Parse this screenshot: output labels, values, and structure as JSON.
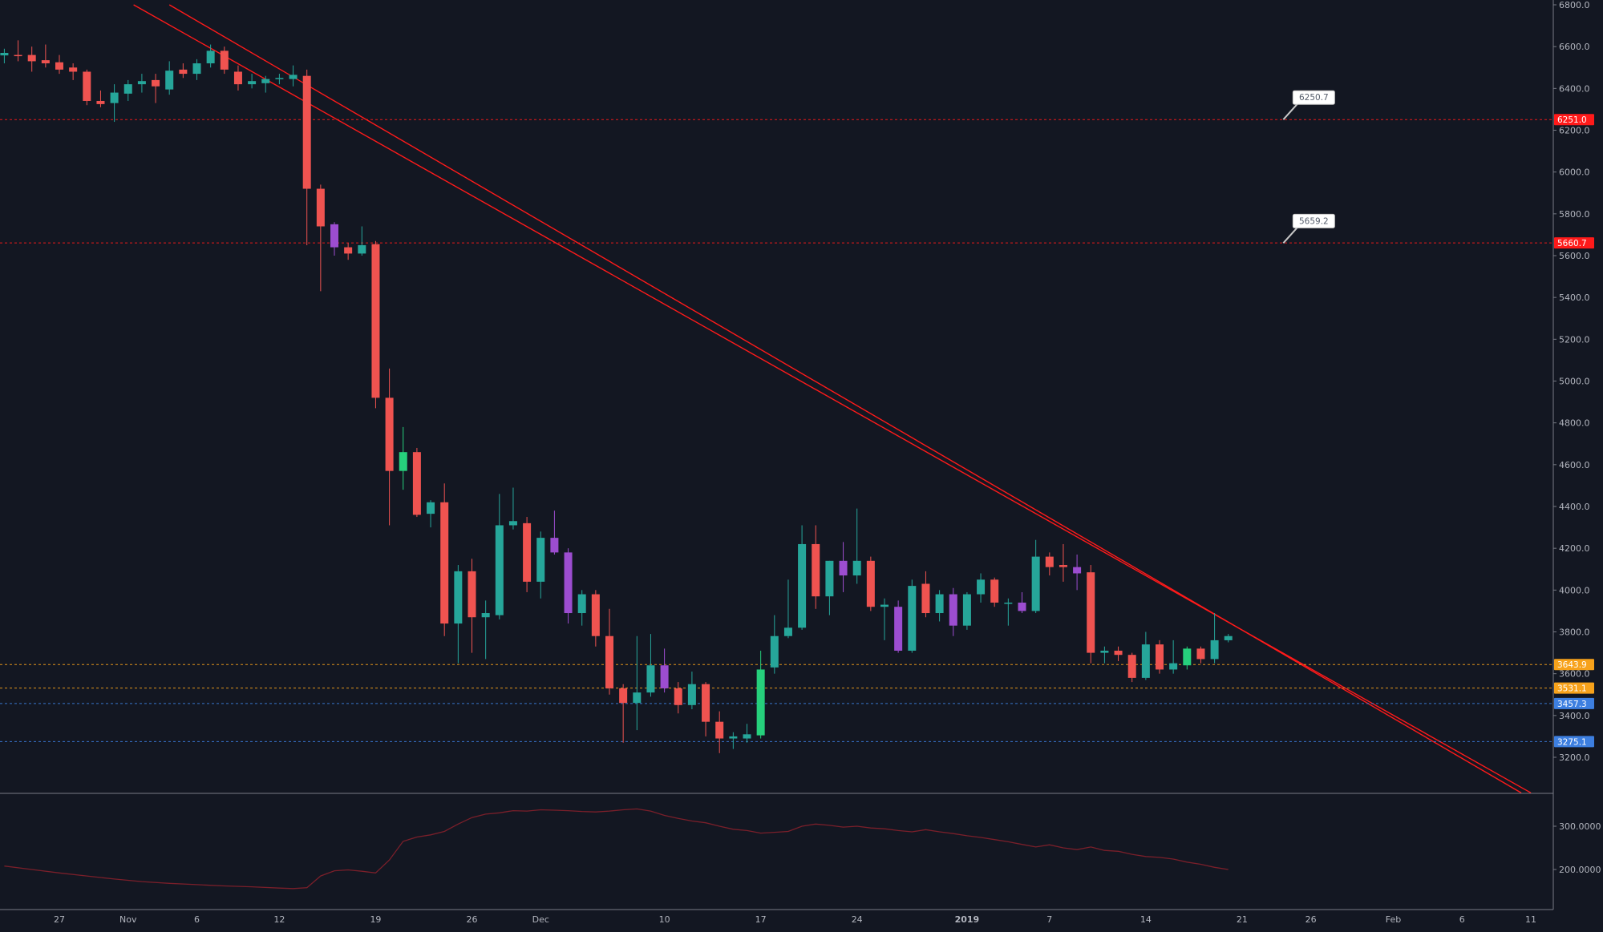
{
  "colors": {
    "background": "#131722",
    "up": "#26a69a",
    "down": "#ef5350",
    "up_bright": "#26d07c",
    "purple": "#9c4dd0",
    "trendline": "#ff1a1a",
    "axis_text": "#b2b5be",
    "grid_border": "#787b86",
    "red_label": "#ff1a1a",
    "orange_label": "#f7a21b",
    "blue_label": "#3d7fe0",
    "osc": "#7a1f2a"
  },
  "chart_data": [
    {
      "type": "candlestick",
      "title": "",
      "ylim": [
        3030,
        6800
      ],
      "y_ticks": [
        "6800.0",
        "6600.0",
        "6400.0",
        "6200.0",
        "6000.0",
        "5800.0",
        "5600.0",
        "5400.0",
        "5200.0",
        "5000.0",
        "4800.0",
        "4600.0",
        "4400.0",
        "4200.0",
        "4000.0",
        "3800.0",
        "3600.0",
        "3400.0",
        "3200.0"
      ],
      "x_ticks": [
        {
          "label": "27",
          "day": 0
        },
        {
          "label": "Nov",
          "day": 5
        },
        {
          "label": "6",
          "day": 10
        },
        {
          "label": "12",
          "day": 16
        },
        {
          "label": "19",
          "day": 23
        },
        {
          "label": "26",
          "day": 30
        },
        {
          "label": "Dec",
          "day": 35
        },
        {
          "label": "10",
          "day": 44
        },
        {
          "label": "17",
          "day": 51
        },
        {
          "label": "24",
          "day": 58
        },
        {
          "label": "2019",
          "day": 66
        },
        {
          "label": "7",
          "day": 72
        },
        {
          "label": "14",
          "day": 79
        },
        {
          "label": "21",
          "day": 86
        },
        {
          "label": "26",
          "day": 91
        },
        {
          "label": "Feb",
          "day": 97
        },
        {
          "label": "6",
          "day": 102
        },
        {
          "label": "11",
          "day": 107
        }
      ],
      "candles": [
        {
          "d": -4,
          "o": 6558,
          "h": 6590,
          "l": 6520,
          "c": 6570
        },
        {
          "d": -3,
          "o": 6560,
          "h": 6630,
          "l": 6530,
          "c": 6555
        },
        {
          "d": -2,
          "o": 6560,
          "h": 6600,
          "l": 6480,
          "c": 6530
        },
        {
          "d": -1,
          "o": 6535,
          "h": 6610,
          "l": 6500,
          "c": 6520
        },
        {
          "d": 0,
          "o": 6525,
          "h": 6560,
          "l": 6470,
          "c": 6490
        },
        {
          "d": 1,
          "o": 6500,
          "h": 6520,
          "l": 6440,
          "c": 6480
        },
        {
          "d": 2,
          "o": 6480,
          "h": 6490,
          "l": 6320,
          "c": 6340
        },
        {
          "d": 3,
          "o": 6340,
          "h": 6390,
          "l": 6310,
          "c": 6325
        },
        {
          "d": 4,
          "o": 6330,
          "h": 6420,
          "l": 6240,
          "c": 6380
        },
        {
          "d": 5,
          "o": 6375,
          "h": 6440,
          "l": 6340,
          "c": 6420
        },
        {
          "d": 6,
          "o": 6420,
          "h": 6470,
          "l": 6380,
          "c": 6435
        },
        {
          "d": 7,
          "o": 6440,
          "h": 6470,
          "l": 6330,
          "c": 6410
        },
        {
          "d": 8,
          "o": 6395,
          "h": 6530,
          "l": 6370,
          "c": 6485
        },
        {
          "d": 9,
          "o": 6490,
          "h": 6520,
          "l": 6450,
          "c": 6470
        },
        {
          "d": 10,
          "o": 6470,
          "h": 6540,
          "l": 6440,
          "c": 6520
        },
        {
          "d": 11,
          "o": 6520,
          "h": 6610,
          "l": 6500,
          "c": 6580
        },
        {
          "d": 12,
          "o": 6580,
          "h": 6600,
          "l": 6470,
          "c": 6490
        },
        {
          "d": 13,
          "o": 6480,
          "h": 6510,
          "l": 6390,
          "c": 6420
        },
        {
          "d": 14,
          "o": 6420,
          "h": 6470,
          "l": 6400,
          "c": 6435
        },
        {
          "d": 15,
          "o": 6425,
          "h": 6460,
          "l": 6380,
          "c": 6445
        },
        {
          "d": 16,
          "o": 6448,
          "h": 6470,
          "l": 6420,
          "c": 6450
        },
        {
          "d": 17,
          "o": 6445,
          "h": 6510,
          "l": 6410,
          "c": 6465
        },
        {
          "d": 18,
          "o": 6460,
          "h": 6490,
          "l": 5650,
          "c": 5920
        },
        {
          "d": 19,
          "o": 5920,
          "h": 5940,
          "l": 5430,
          "c": 5740
        },
        {
          "d": 20,
          "o": 5750,
          "h": 5760,
          "l": 5600,
          "c": 5640,
          "purple": true
        },
        {
          "d": 21,
          "o": 5640,
          "h": 5660,
          "l": 5580,
          "c": 5610
        },
        {
          "d": 22,
          "o": 5610,
          "h": 5740,
          "l": 5600,
          "c": 5650
        },
        {
          "d": 23,
          "o": 5655,
          "h": 5670,
          "l": 4870,
          "c": 4920
        },
        {
          "d": 24,
          "o": 4920,
          "h": 5060,
          "l": 4310,
          "c": 4570
        },
        {
          "d": 25,
          "o": 4570,
          "h": 4780,
          "l": 4480,
          "c": 4660,
          "bright": true
        },
        {
          "d": 26,
          "o": 4660,
          "h": 4680,
          "l": 4350,
          "c": 4360
        },
        {
          "d": 27,
          "o": 4365,
          "h": 4430,
          "l": 4300,
          "c": 4420
        },
        {
          "d": 28,
          "o": 4420,
          "h": 4510,
          "l": 3780,
          "c": 3840
        },
        {
          "d": 29,
          "o": 3840,
          "h": 4120,
          "l": 3650,
          "c": 4090
        },
        {
          "d": 30,
          "o": 4090,
          "h": 4150,
          "l": 3700,
          "c": 3870
        },
        {
          "d": 31,
          "o": 3870,
          "h": 3950,
          "l": 3670,
          "c": 3890
        },
        {
          "d": 32,
          "o": 3880,
          "h": 4460,
          "l": 3860,
          "c": 4310
        },
        {
          "d": 33,
          "o": 4310,
          "h": 4490,
          "l": 4290,
          "c": 4330
        },
        {
          "d": 34,
          "o": 4320,
          "h": 4350,
          "l": 3990,
          "c": 4040
        },
        {
          "d": 35,
          "o": 4040,
          "h": 4280,
          "l": 3960,
          "c": 4250
        },
        {
          "d": 36,
          "o": 4250,
          "h": 4380,
          "l": 4170,
          "c": 4180,
          "purple": true
        },
        {
          "d": 37,
          "o": 4180,
          "h": 4200,
          "l": 3840,
          "c": 3890,
          "purple": true
        },
        {
          "d": 38,
          "o": 3890,
          "h": 4000,
          "l": 3830,
          "c": 3980
        },
        {
          "d": 39,
          "o": 3980,
          "h": 4000,
          "l": 3730,
          "c": 3780
        },
        {
          "d": 40,
          "o": 3780,
          "h": 3910,
          "l": 3500,
          "c": 3530
        },
        {
          "d": 41,
          "o": 3530,
          "h": 3550,
          "l": 3270,
          "c": 3460
        },
        {
          "d": 42,
          "o": 3460,
          "h": 3780,
          "l": 3330,
          "c": 3510
        },
        {
          "d": 43,
          "o": 3510,
          "h": 3790,
          "l": 3490,
          "c": 3640
        },
        {
          "d": 44,
          "o": 3640,
          "h": 3720,
          "l": 3510,
          "c": 3530,
          "purple": true
        },
        {
          "d": 45,
          "o": 3530,
          "h": 3560,
          "l": 3410,
          "c": 3450
        },
        {
          "d": 46,
          "o": 3450,
          "h": 3610,
          "l": 3430,
          "c": 3550
        },
        {
          "d": 47,
          "o": 3550,
          "h": 3560,
          "l": 3300,
          "c": 3370
        },
        {
          "d": 48,
          "o": 3370,
          "h": 3420,
          "l": 3220,
          "c": 3290
        },
        {
          "d": 49,
          "o": 3290,
          "h": 3320,
          "l": 3240,
          "c": 3300
        },
        {
          "d": 50,
          "o": 3290,
          "h": 3360,
          "l": 3270,
          "c": 3310
        },
        {
          "d": 51,
          "o": 3305,
          "h": 3710,
          "l": 3290,
          "c": 3620,
          "bright": true
        },
        {
          "d": 52,
          "o": 3630,
          "h": 3880,
          "l": 3600,
          "c": 3780
        },
        {
          "d": 53,
          "o": 3780,
          "h": 4050,
          "l": 3770,
          "c": 3820
        },
        {
          "d": 54,
          "o": 3820,
          "h": 4310,
          "l": 3810,
          "c": 4220
        },
        {
          "d": 55,
          "o": 4220,
          "h": 4310,
          "l": 3910,
          "c": 3970
        },
        {
          "d": 56,
          "o": 3970,
          "h": 4140,
          "l": 3880,
          "c": 4140
        },
        {
          "d": 57,
          "o": 4140,
          "h": 4230,
          "l": 3990,
          "c": 4070,
          "purple": true
        },
        {
          "d": 58,
          "o": 4070,
          "h": 4390,
          "l": 4030,
          "c": 4140
        },
        {
          "d": 59,
          "o": 4140,
          "h": 4160,
          "l": 3900,
          "c": 3920
        },
        {
          "d": 60,
          "o": 3920,
          "h": 3960,
          "l": 3760,
          "c": 3930
        },
        {
          "d": 61,
          "o": 3920,
          "h": 3950,
          "l": 3700,
          "c": 3710,
          "purple": true
        },
        {
          "d": 62,
          "o": 3710,
          "h": 4050,
          "l": 3700,
          "c": 4020
        },
        {
          "d": 63,
          "o": 4030,
          "h": 4090,
          "l": 3870,
          "c": 3890
        },
        {
          "d": 64,
          "o": 3890,
          "h": 4000,
          "l": 3850,
          "c": 3980
        },
        {
          "d": 65,
          "o": 3980,
          "h": 4010,
          "l": 3780,
          "c": 3830,
          "purple": true
        },
        {
          "d": 66,
          "o": 3830,
          "h": 3990,
          "l": 3810,
          "c": 3980
        },
        {
          "d": 67,
          "o": 3980,
          "h": 4080,
          "l": 3940,
          "c": 4050
        },
        {
          "d": 68,
          "o": 4050,
          "h": 4060,
          "l": 3920,
          "c": 3940
        },
        {
          "d": 69,
          "o": 3940,
          "h": 3960,
          "l": 3830,
          "c": 3940
        },
        {
          "d": 70,
          "o": 3940,
          "h": 3990,
          "l": 3890,
          "c": 3900,
          "purple": true
        },
        {
          "d": 71,
          "o": 3900,
          "h": 4240,
          "l": 3890,
          "c": 4160
        },
        {
          "d": 72,
          "o": 4160,
          "h": 4180,
          "l": 4070,
          "c": 4110
        },
        {
          "d": 73,
          "o": 4120,
          "h": 4220,
          "l": 4040,
          "c": 4110
        },
        {
          "d": 74,
          "o": 4110,
          "h": 4170,
          "l": 4000,
          "c": 4080,
          "purple": true
        },
        {
          "d": 75,
          "o": 4085,
          "h": 4120,
          "l": 3650,
          "c": 3700
        },
        {
          "d": 76,
          "o": 3700,
          "h": 3730,
          "l": 3650,
          "c": 3710
        },
        {
          "d": 77,
          "o": 3710,
          "h": 3730,
          "l": 3660,
          "c": 3690
        },
        {
          "d": 78,
          "o": 3690,
          "h": 3700,
          "l": 3560,
          "c": 3580
        },
        {
          "d": 79,
          "o": 3580,
          "h": 3800,
          "l": 3570,
          "c": 3740
        },
        {
          "d": 80,
          "o": 3740,
          "h": 3760,
          "l": 3600,
          "c": 3620
        },
        {
          "d": 81,
          "o": 3620,
          "h": 3760,
          "l": 3600,
          "c": 3650
        },
        {
          "d": 82,
          "o": 3640,
          "h": 3730,
          "l": 3620,
          "c": 3720,
          "bright": true
        },
        {
          "d": 83,
          "o": 3720,
          "h": 3730,
          "l": 3650,
          "c": 3670
        },
        {
          "d": 84,
          "o": 3670,
          "h": 3890,
          "l": 3650,
          "c": 3760
        },
        {
          "d": 85,
          "o": 3760,
          "h": 3790,
          "l": 3750,
          "c": 3780
        }
      ],
      "trendlines": [
        {
          "from": {
            "d": 5.4,
            "p": 6800
          },
          "to": {
            "d": 107,
            "p": 3030
          }
        },
        {
          "from": {
            "d": 8,
            "p": 6800
          },
          "to": {
            "d": 106.3,
            "p": 3030
          }
        }
      ],
      "level_lines": [
        {
          "price": 6251.0,
          "label": "6251.0",
          "kind": "red"
        },
        {
          "price": 5660.7,
          "label": "5660.7",
          "kind": "red"
        },
        {
          "price": 3643.9,
          "label": "3643.9",
          "kind": "orange"
        },
        {
          "price": 3531.1,
          "label": "3531.1",
          "kind": "orange"
        },
        {
          "price": 3457.3,
          "label": "3457.3",
          "kind": "blue"
        },
        {
          "price": 3275.1,
          "label": "3275.1",
          "kind": "blue"
        }
      ],
      "callouts": [
        {
          "text": "6250.7",
          "d": 89,
          "p": 6251
        },
        {
          "text": "5659.2",
          "d": 89,
          "p": 5660
        }
      ]
    },
    {
      "type": "line",
      "title": "",
      "y_ticks": [
        "300.0000",
        "200.0000"
      ],
      "ylim": [
        130,
        360
      ],
      "x": [
        -4,
        -2,
        0,
        2,
        4,
        6,
        8,
        10,
        12,
        14,
        16,
        17,
        18,
        19,
        20,
        21,
        22,
        23,
        24,
        25,
        26,
        27,
        28,
        29,
        30,
        31,
        32,
        33,
        34,
        35,
        36,
        37,
        38,
        39,
        40,
        41,
        42,
        43,
        44,
        45,
        46,
        47,
        48,
        49,
        50,
        51,
        52,
        53,
        54,
        55,
        56,
        57,
        58,
        59,
        60,
        61,
        62,
        63,
        64,
        65,
        66,
        67,
        68,
        69,
        70,
        71,
        72,
        73,
        74,
        75,
        76,
        77,
        78,
        79,
        80,
        81,
        82,
        83,
        84,
        85
      ],
      "values": [
        208,
        200,
        192,
        185,
        178,
        172,
        168,
        165,
        162,
        160,
        157,
        156,
        158,
        185,
        197,
        199,
        196,
        192,
        222,
        265,
        275,
        280,
        288,
        305,
        320,
        328,
        331,
        336,
        335,
        338,
        337,
        336,
        334,
        333,
        335,
        338,
        340,
        335,
        325,
        318,
        312,
        308,
        300,
        293,
        290,
        284,
        286,
        288,
        300,
        305,
        302,
        298,
        300,
        296,
        294,
        290,
        287,
        292,
        287,
        283,
        278,
        274,
        269,
        264,
        258,
        252,
        257,
        250,
        246,
        252,
        244,
        242,
        235,
        230,
        228,
        224,
        217,
        212,
        205,
        200
      ]
    }
  ]
}
